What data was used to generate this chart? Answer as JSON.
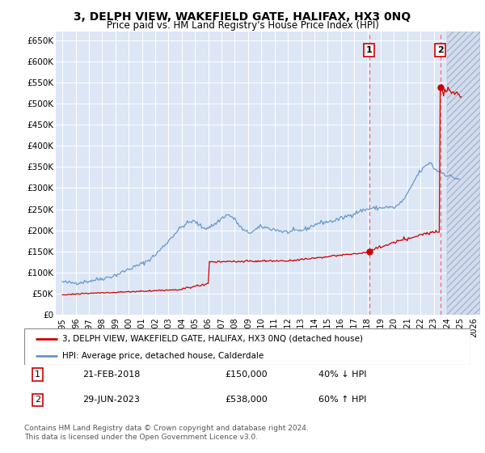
{
  "title": "3, DELPH VIEW, WAKEFIELD GATE, HALIFAX, HX3 0NQ",
  "subtitle": "Price paid vs. HM Land Registry's House Price Index (HPI)",
  "legend_property": "3, DELPH VIEW, WAKEFIELD GATE, HALIFAX, HX3 0NQ (detached house)",
  "legend_hpi": "HPI: Average price, detached house, Calderdale",
  "annotation1_label": "1",
  "annotation1_date": "21-FEB-2018",
  "annotation1_price": "£150,000",
  "annotation1_pct": "40% ↓ HPI",
  "annotation2_label": "2",
  "annotation2_date": "29-JUN-2023",
  "annotation2_price": "£538,000",
  "annotation2_pct": "60% ↑ HPI",
  "footer": "Contains HM Land Registry data © Crown copyright and database right 2024.\nThis data is licensed under the Open Government Licence v3.0.",
  "xlim": [
    1994.5,
    2026.5
  ],
  "ylim": [
    0,
    670000
  ],
  "yticks": [
    0,
    50000,
    100000,
    150000,
    200000,
    250000,
    300000,
    350000,
    400000,
    450000,
    500000,
    550000,
    600000,
    650000
  ],
  "ytick_labels": [
    "£0",
    "£50K",
    "£100K",
    "£150K",
    "£200K",
    "£250K",
    "£300K",
    "£350K",
    "£400K",
    "£450K",
    "£500K",
    "£550K",
    "£600K",
    "£650K"
  ],
  "xtick_years": [
    1995,
    1996,
    1997,
    1998,
    1999,
    2000,
    2001,
    2002,
    2003,
    2004,
    2005,
    2006,
    2007,
    2008,
    2009,
    2010,
    2011,
    2012,
    2013,
    2014,
    2015,
    2016,
    2017,
    2018,
    2019,
    2020,
    2021,
    2022,
    2023,
    2024,
    2025,
    2026
  ],
  "hpi_color": "#6699cc",
  "property_color": "#cc0000",
  "annotation_vline_color": "#ff6666",
  "annotation_box_color": "#cc0000",
  "background_plot": "#dce6f5",
  "background_highlight": "#dce6f5",
  "background_hatch_color": "#c8d4e8",
  "sale1_year": 2018.13,
  "sale1_price": 150000,
  "sale2_year": 2023.49,
  "sale2_price": 538000,
  "hatch_start": 2024.0
}
